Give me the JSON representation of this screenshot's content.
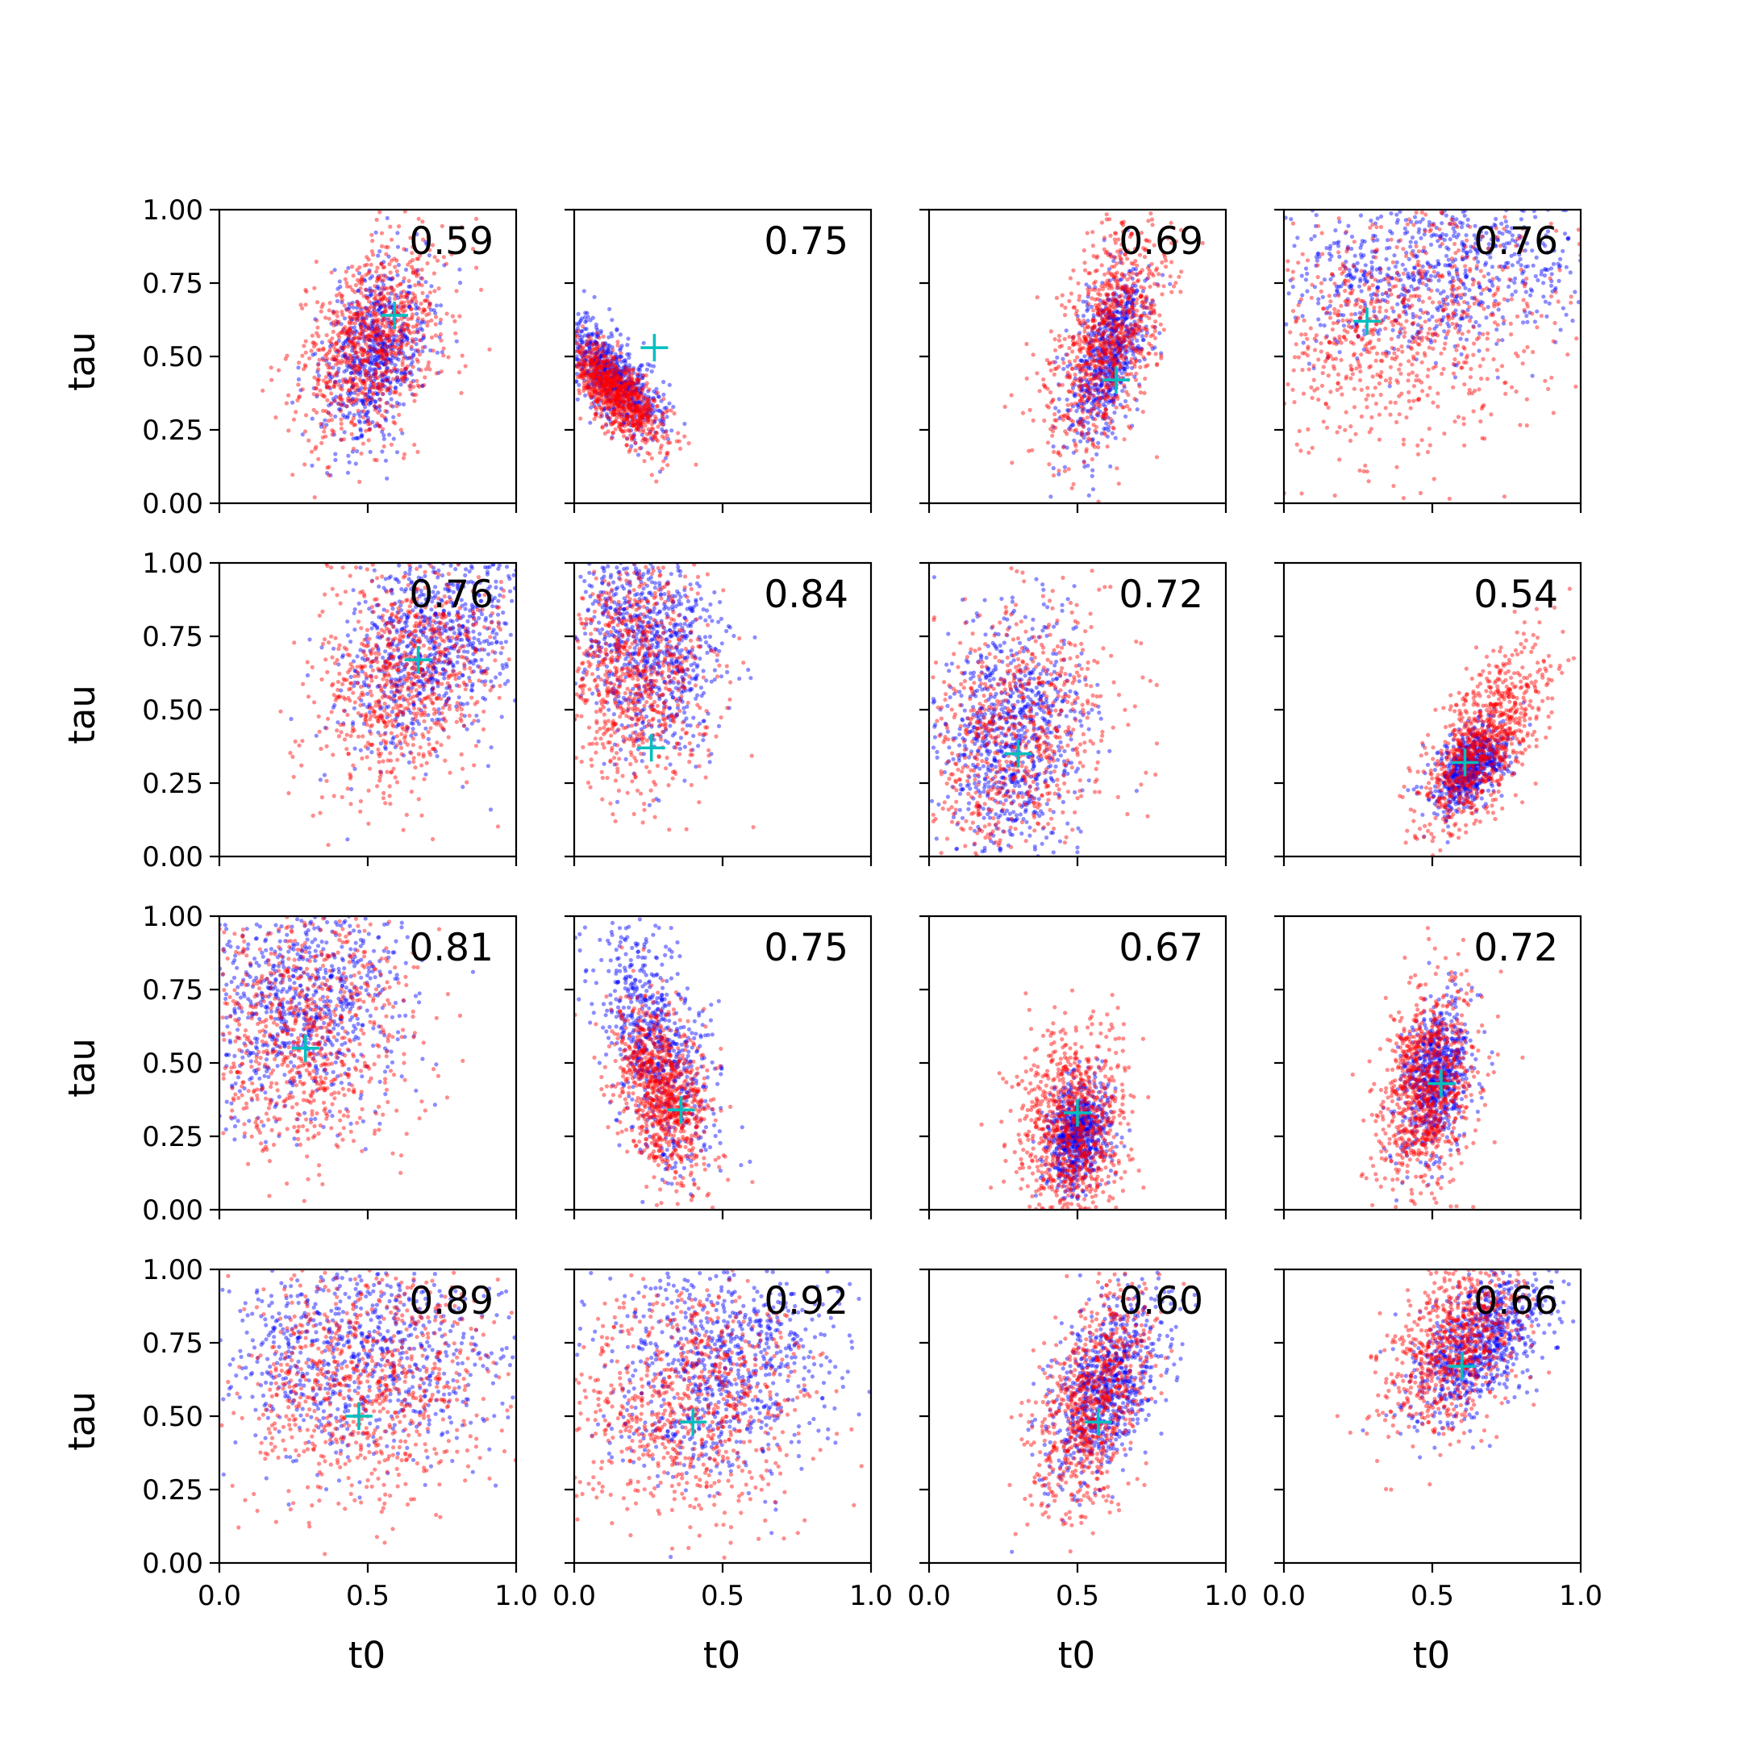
{
  "figure": {
    "xlabel": "t0",
    "ylabel": "tau",
    "xlim": [
      0.0,
      1.0
    ],
    "ylim": [
      0.0,
      1.0
    ],
    "x_ticks": [
      "0.0",
      "0.5",
      "1.0"
    ],
    "y_ticks": [
      "0.00",
      "0.25",
      "0.50",
      "0.75",
      "1.00"
    ],
    "colors": {
      "series_a": "#0000ff",
      "series_b": "#ff0000",
      "marker": "#00bfbf",
      "axes": "#000000"
    }
  },
  "chart_data": [
    {
      "type": "scatter",
      "panel": [
        0,
        0
      ],
      "label": "0.59",
      "marker": [
        0.59,
        0.64
      ],
      "clouds": [
        {
          "series": "blue",
          "cx": 0.53,
          "cy": 0.52,
          "sx": 0.09,
          "sy": 0.16,
          "rho": 0.35,
          "n": 700
        },
        {
          "series": "red",
          "cx": 0.52,
          "cy": 0.55,
          "sx": 0.12,
          "sy": 0.17,
          "rho": 0.35,
          "n": 900
        }
      ]
    },
    {
      "type": "scatter",
      "panel": [
        0,
        1
      ],
      "label": "0.75",
      "marker": [
        0.27,
        0.53
      ],
      "clouds": [
        {
          "series": "blue",
          "cx": 0.13,
          "cy": 0.43,
          "sx": 0.08,
          "sy": 0.1,
          "rho": -0.7,
          "n": 700
        },
        {
          "series": "red",
          "cx": 0.14,
          "cy": 0.38,
          "sx": 0.08,
          "sy": 0.09,
          "rho": -0.75,
          "n": 900
        }
      ]
    },
    {
      "type": "scatter",
      "panel": [
        0,
        2
      ],
      "label": "0.69",
      "marker": [
        0.63,
        0.42
      ],
      "clouds": [
        {
          "series": "blue",
          "cx": 0.6,
          "cy": 0.5,
          "sx": 0.07,
          "sy": 0.15,
          "rho": 0.55,
          "n": 700
        },
        {
          "series": "red",
          "cx": 0.6,
          "cy": 0.56,
          "sx": 0.1,
          "sy": 0.2,
          "rho": 0.55,
          "n": 900
        }
      ]
    },
    {
      "type": "scatter",
      "panel": [
        0,
        3
      ],
      "label": "0.76",
      "marker": [
        0.28,
        0.62
      ],
      "clouds": [
        {
          "series": "blue",
          "cx": 0.5,
          "cy": 0.8,
          "sx": 0.28,
          "sy": 0.15,
          "rho": 0.1,
          "n": 800
        },
        {
          "series": "red",
          "cx": 0.4,
          "cy": 0.6,
          "sx": 0.25,
          "sy": 0.22,
          "rho": 0.2,
          "n": 800
        }
      ]
    },
    {
      "type": "scatter",
      "panel": [
        1,
        0
      ],
      "label": "0.76",
      "marker": [
        0.67,
        0.67
      ],
      "clouds": [
        {
          "series": "blue",
          "cx": 0.72,
          "cy": 0.72,
          "sx": 0.15,
          "sy": 0.18,
          "rho": 0.3,
          "n": 800
        },
        {
          "series": "red",
          "cx": 0.62,
          "cy": 0.62,
          "sx": 0.15,
          "sy": 0.2,
          "rho": 0.3,
          "n": 800
        }
      ]
    },
    {
      "type": "scatter",
      "panel": [
        1,
        1
      ],
      "label": "0.84",
      "marker": [
        0.26,
        0.37
      ],
      "clouds": [
        {
          "series": "blue",
          "cx": 0.24,
          "cy": 0.72,
          "sx": 0.12,
          "sy": 0.18,
          "rho": -0.2,
          "n": 800
        },
        {
          "series": "red",
          "cx": 0.2,
          "cy": 0.62,
          "sx": 0.12,
          "sy": 0.2,
          "rho": -0.1,
          "n": 800
        }
      ]
    },
    {
      "type": "scatter",
      "panel": [
        1,
        2
      ],
      "label": "0.72",
      "marker": [
        0.3,
        0.35
      ],
      "clouds": [
        {
          "series": "blue",
          "cx": 0.28,
          "cy": 0.4,
          "sx": 0.13,
          "sy": 0.2,
          "rho": 0.1,
          "n": 800
        },
        {
          "series": "red",
          "cx": 0.28,
          "cy": 0.4,
          "sx": 0.18,
          "sy": 0.25,
          "rho": 0.2,
          "n": 800
        }
      ]
    },
    {
      "type": "scatter",
      "panel": [
        1,
        3
      ],
      "label": "0.54",
      "marker": [
        0.61,
        0.32
      ],
      "clouds": [
        {
          "series": "blue",
          "cx": 0.63,
          "cy": 0.3,
          "sx": 0.06,
          "sy": 0.07,
          "rho": 0.5,
          "n": 700
        },
        {
          "series": "red",
          "cx": 0.68,
          "cy": 0.4,
          "sx": 0.1,
          "sy": 0.15,
          "rho": 0.65,
          "n": 900
        }
      ]
    },
    {
      "type": "scatter",
      "panel": [
        2,
        0
      ],
      "label": "0.81",
      "marker": [
        0.29,
        0.55
      ],
      "clouds": [
        {
          "series": "blue",
          "cx": 0.28,
          "cy": 0.7,
          "sx": 0.18,
          "sy": 0.2,
          "rho": 0.2,
          "n": 800
        },
        {
          "series": "red",
          "cx": 0.3,
          "cy": 0.6,
          "sx": 0.18,
          "sy": 0.22,
          "rho": 0.1,
          "n": 800
        }
      ]
    },
    {
      "type": "scatter",
      "panel": [
        2,
        1
      ],
      "label": "0.75",
      "marker": [
        0.36,
        0.34
      ],
      "clouds": [
        {
          "series": "blue",
          "cx": 0.28,
          "cy": 0.55,
          "sx": 0.1,
          "sy": 0.2,
          "rho": -0.5,
          "n": 700
        },
        {
          "series": "red",
          "cx": 0.3,
          "cy": 0.4,
          "sx": 0.08,
          "sy": 0.15,
          "rho": -0.4,
          "n": 900
        }
      ]
    },
    {
      "type": "scatter",
      "panel": [
        2,
        2
      ],
      "label": "0.67",
      "marker": [
        0.5,
        0.33
      ],
      "clouds": [
        {
          "series": "blue",
          "cx": 0.5,
          "cy": 0.25,
          "sx": 0.05,
          "sy": 0.09,
          "rho": 0.2,
          "n": 700
        },
        {
          "series": "red",
          "cx": 0.48,
          "cy": 0.28,
          "sx": 0.09,
          "sy": 0.17,
          "rho": 0.1,
          "n": 900
        }
      ]
    },
    {
      "type": "scatter",
      "panel": [
        2,
        3
      ],
      "label": "0.72",
      "marker": [
        0.53,
        0.43
      ],
      "clouds": [
        {
          "series": "blue",
          "cx": 0.51,
          "cy": 0.44,
          "sx": 0.06,
          "sy": 0.13,
          "rho": 0.3,
          "n": 700
        },
        {
          "series": "red",
          "cx": 0.48,
          "cy": 0.42,
          "sx": 0.08,
          "sy": 0.17,
          "rho": 0.2,
          "n": 900
        }
      ]
    },
    {
      "type": "scatter",
      "panel": [
        3,
        0
      ],
      "label": "0.89",
      "marker": [
        0.47,
        0.5
      ],
      "clouds": [
        {
          "series": "blue",
          "cx": 0.45,
          "cy": 0.72,
          "sx": 0.25,
          "sy": 0.18,
          "rho": 0.0,
          "n": 800
        },
        {
          "series": "red",
          "cx": 0.48,
          "cy": 0.62,
          "sx": 0.22,
          "sy": 0.2,
          "rho": 0.0,
          "n": 800
        }
      ]
    },
    {
      "type": "scatter",
      "panel": [
        3,
        1
      ],
      "label": "0.92",
      "marker": [
        0.4,
        0.48
      ],
      "clouds": [
        {
          "series": "blue",
          "cx": 0.48,
          "cy": 0.68,
          "sx": 0.2,
          "sy": 0.2,
          "rho": 0.1,
          "n": 800
        },
        {
          "series": "red",
          "cx": 0.38,
          "cy": 0.55,
          "sx": 0.2,
          "sy": 0.2,
          "rho": 0.0,
          "n": 800
        }
      ]
    },
    {
      "type": "scatter",
      "panel": [
        3,
        2
      ],
      "label": "0.60",
      "marker": [
        0.57,
        0.48
      ],
      "clouds": [
        {
          "series": "blue",
          "cx": 0.6,
          "cy": 0.6,
          "sx": 0.1,
          "sy": 0.17,
          "rho": 0.55,
          "n": 800
        },
        {
          "series": "red",
          "cx": 0.55,
          "cy": 0.55,
          "sx": 0.1,
          "sy": 0.2,
          "rho": 0.5,
          "n": 800
        }
      ]
    },
    {
      "type": "scatter",
      "panel": [
        3,
        3
      ],
      "label": "0.66",
      "marker": [
        0.6,
        0.67
      ],
      "clouds": [
        {
          "series": "blue",
          "cx": 0.66,
          "cy": 0.75,
          "sx": 0.12,
          "sy": 0.13,
          "rho": 0.55,
          "n": 800
        },
        {
          "series": "red",
          "cx": 0.58,
          "cy": 0.75,
          "sx": 0.12,
          "sy": 0.16,
          "rho": 0.5,
          "n": 800
        }
      ]
    }
  ]
}
